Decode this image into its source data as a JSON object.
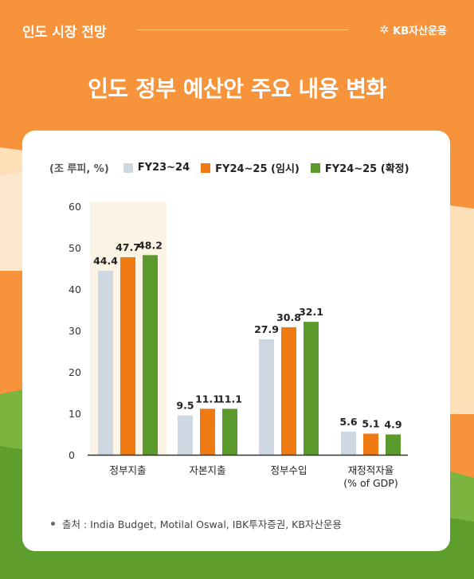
{
  "header": {
    "section_label": "인도 시장 전망",
    "brand": "KB자산운용",
    "headline": "인도 정부 예산안 주요 내용 변화"
  },
  "colors": {
    "background": "#f7933a",
    "card": "#ffffff",
    "highlight": "#fbf3e4",
    "series1": "#cdd8e2",
    "series2": "#f07a12",
    "series3": "#5b9a2d"
  },
  "chart_data": {
    "type": "bar",
    "unit_label": "(조 루피, %)",
    "categories": [
      "정부지출",
      "자본지출",
      "정부수입",
      "재정적자율\n(% of GDP)"
    ],
    "series": [
      {
        "name": "FY23~24",
        "values": [
          44.4,
          9.5,
          27.9,
          5.6
        ],
        "labels": [
          "44.4",
          "9.5",
          "27.9",
          "5.6"
        ]
      },
      {
        "name": "FY24~25 (임시)",
        "values": [
          47.7,
          11.1,
          30.8,
          5.1
        ],
        "labels": [
          "47.7",
          "11.1",
          "30.8",
          "5.1"
        ]
      },
      {
        "name": "FY24~25 (확정)",
        "values": [
          48.2,
          11.1,
          32.1,
          4.9
        ],
        "labels": [
          "48.2",
          "11.1",
          "32.1",
          "4.9"
        ]
      }
    ],
    "yticks": [
      0,
      10,
      20,
      30,
      40,
      50,
      60
    ],
    "ylim": [
      0,
      60
    ],
    "highlighted_category": "정부지출",
    "grid": false,
    "legend_position": "top"
  },
  "footer": {
    "source": "출처 : India Budget, Motilal Oswal, IBK투자증권, KB자산운용"
  }
}
